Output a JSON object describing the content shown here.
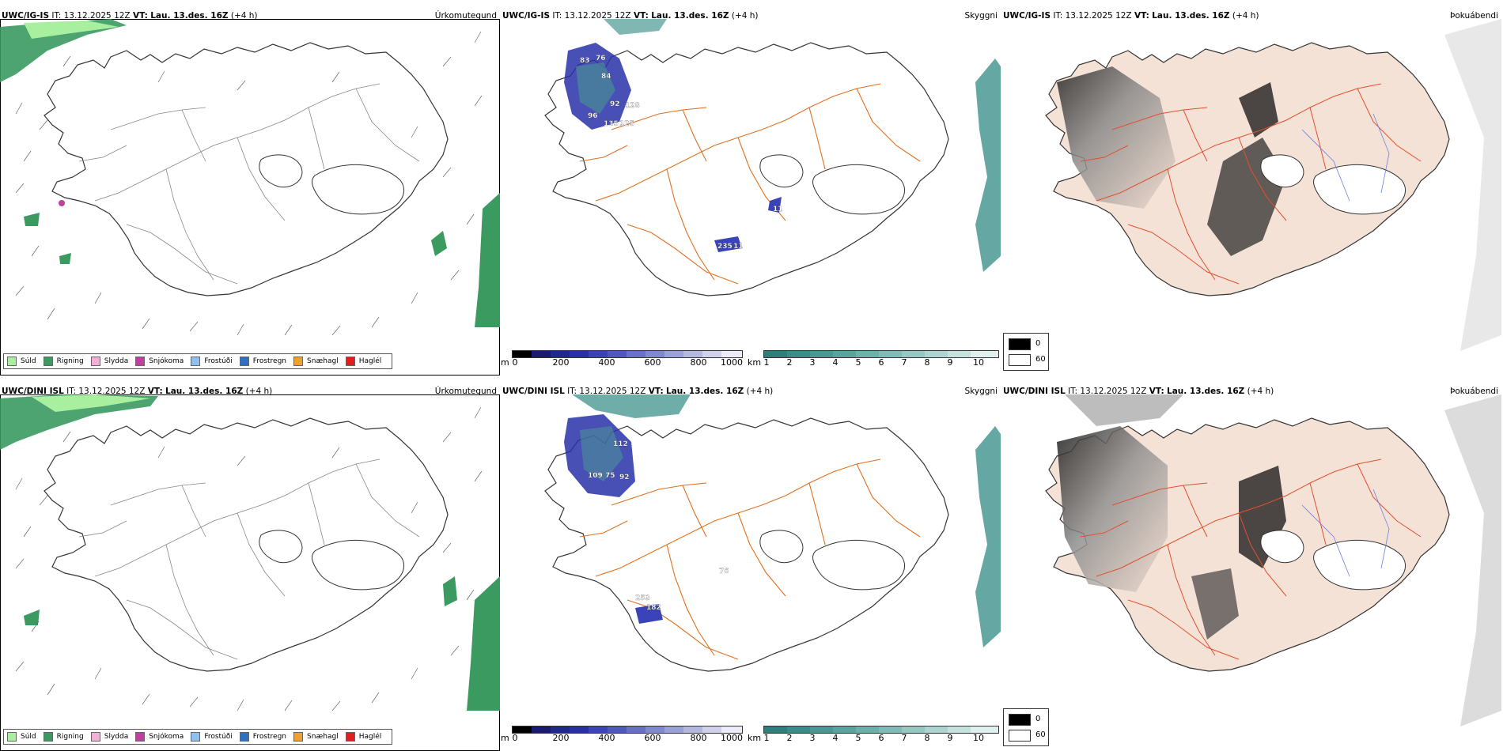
{
  "rows": [
    {
      "model": "UWC/IG-IS",
      "it_label": "IT:",
      "it_value": "13.12.2025 12Z",
      "vt_label": "VT:",
      "vt_value": "Lau. 13.des. 16Z",
      "lead": "(+4 h)"
    },
    {
      "model": "UWC/DINI ISL",
      "it_label": "IT:",
      "it_value": "13.12.2025 12Z",
      "vt_label": "VT:",
      "vt_value": "Lau. 13.des. 16Z",
      "lead": "(+4 h)"
    }
  ],
  "panel_titles": {
    "precip": "Úrkomutegund",
    "ceiling": "Skyggni",
    "fog": "Þokuábendi"
  },
  "precip_legend": [
    {
      "label": "Súld",
      "color": "#a8f0a0"
    },
    {
      "label": "Rigning",
      "color": "#3a9a60"
    },
    {
      "label": "Slydda",
      "color": "#f5b0d8"
    },
    {
      "label": "Snjókoma",
      "color": "#c040a0"
    },
    {
      "label": "Frostúði",
      "color": "#90c0f0"
    },
    {
      "label": "Frostregn",
      "color": "#3070c0"
    },
    {
      "label": "Snæhagl",
      "color": "#f0a030"
    },
    {
      "label": "Haglél",
      "color": "#e02020"
    }
  ],
  "ceiling_scale": {
    "unit": "m",
    "ticks": [
      "0",
      "200",
      "400",
      "600",
      "800",
      "1000"
    ],
    "colors": [
      "#000000",
      "#1a1a70",
      "#202890",
      "#2830a8",
      "#3a44b8",
      "#5058c0",
      "#6a70c8",
      "#8088d0",
      "#9aa0d8",
      "#b4b8e0",
      "#d0d2ec",
      "#ececf8"
    ]
  },
  "visibility_scale": {
    "unit": "km",
    "ticks": [
      "1",
      "2",
      "3",
      "4",
      "5",
      "6",
      "7",
      "8",
      "9",
      "10"
    ],
    "colors": [
      "#2e7f7a",
      "#3a8c86",
      "#4a9892",
      "#5aa49e",
      "#6cb0aa",
      "#80bcb6",
      "#96c8c2",
      "#aed4d0",
      "#c6e2de",
      "#e0f0ee"
    ]
  },
  "fog_legend": [
    {
      "label": "0",
      "color": "#000000"
    },
    {
      "label": "60",
      "color": "#ffffff"
    }
  ],
  "ceiling_labels": [
    [
      "83",
      "76",
      "84",
      "92",
      "128",
      "96",
      "135",
      "125",
      "11",
      "235",
      "11"
    ],
    [
      "112",
      "109",
      "75",
      "92",
      "76",
      "253",
      "182"
    ]
  ]
}
